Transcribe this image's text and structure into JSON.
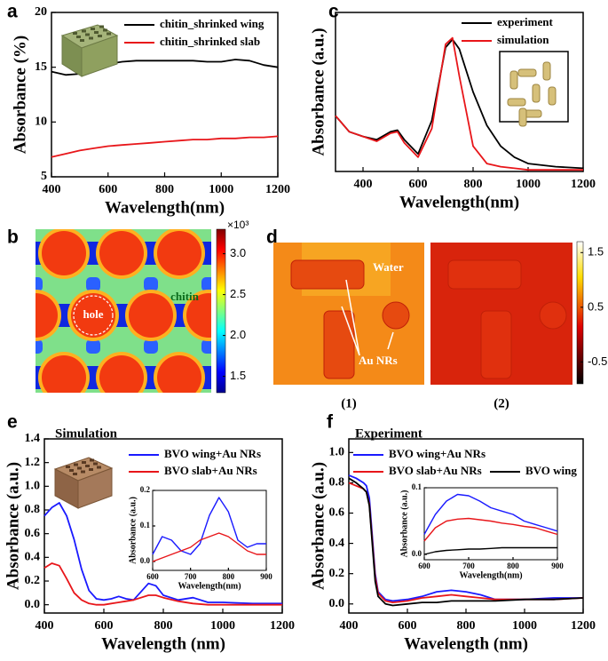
{
  "chart_data": [
    {
      "type": "line",
      "panel_label": "a",
      "xlabel": "Wavelength(nm)",
      "ylabel": "Absorbance (%)",
      "xlim": [
        400,
        1200
      ],
      "ylim": [
        5,
        20
      ],
      "xticks": [
        400,
        600,
        800,
        1000,
        1200
      ],
      "yticks": [
        5,
        10,
        15,
        20
      ],
      "x": [
        400,
        450,
        500,
        550,
        600,
        650,
        700,
        750,
        800,
        850,
        900,
        950,
        1000,
        1050,
        1100,
        1150,
        1200
      ],
      "series": [
        {
          "name": "chitin_shrinked wing",
          "color": "#000000",
          "values": [
            14.6,
            14.3,
            14.4,
            15.8,
            15.3,
            15.5,
            15.6,
            15.6,
            15.6,
            15.6,
            15.6,
            15.5,
            15.5,
            15.7,
            15.6,
            15.2,
            15.0
          ]
        },
        {
          "name": "chitin_shrinked slab",
          "color": "#e8161a",
          "values": [
            6.8,
            7.1,
            7.4,
            7.6,
            7.8,
            7.9,
            8.0,
            8.1,
            8.2,
            8.3,
            8.4,
            8.4,
            8.5,
            8.5,
            8.6,
            8.6,
            8.7
          ]
        }
      ]
    },
    {
      "type": "heatmap",
      "panel_label": "b",
      "colormap": "jet",
      "clim": [
        1.3,
        3.3
      ],
      "cticks": [
        1.5,
        {
          "value": 2,
          "label": "2.0"
        },
        2.5,
        {
          "value": 3,
          "label": "3.0"
        }
      ],
      "colorbar_label": "×10³",
      "annotations": [
        "hole",
        "chitin"
      ]
    },
    {
      "type": "line",
      "panel_label": "c",
      "xlabel": "Wavelength(nm)",
      "ylabel": "Absorbance (a.u.)",
      "xlim": [
        300,
        1200
      ],
      "ylim": [
        0,
        1
      ],
      "xticks": [
        400,
        600,
        800,
        1000,
        1200
      ],
      "x": [
        300,
        350,
        400,
        450,
        500,
        525,
        550,
        600,
        650,
        700,
        725,
        750,
        800,
        850,
        900,
        950,
        1000,
        1100,
        1200
      ],
      "series": [
        {
          "name": "experiment",
          "color": "#000000",
          "values": [
            0.35,
            0.25,
            0.22,
            0.2,
            0.25,
            0.26,
            0.2,
            0.11,
            0.32,
            0.78,
            0.83,
            0.77,
            0.5,
            0.29,
            0.16,
            0.09,
            0.05,
            0.03,
            0.02
          ]
        },
        {
          "name": "simulation",
          "color": "#e8161a",
          "values": [
            0.35,
            0.25,
            0.22,
            0.19,
            0.24,
            0.25,
            0.18,
            0.09,
            0.27,
            0.8,
            0.84,
            0.6,
            0.16,
            0.05,
            0.03,
            0.02,
            0.01,
            0.01,
            0.01
          ]
        }
      ]
    },
    {
      "type": "heatmap",
      "panel_label": "d",
      "colormap": "hot",
      "clim": [
        -0.9,
        1.7
      ],
      "cticks": [
        1.5,
        0.5,
        -0.5
      ],
      "annotations": [
        "Water",
        "Au NRs"
      ],
      "subplot_labels": [
        "(1)",
        "(2)"
      ]
    },
    {
      "type": "line",
      "panel_label": "e",
      "title": "Simulation",
      "xlabel": "Wavelength (nm)",
      "ylabel": "Absorbance (a.u.)",
      "xlim": [
        400,
        1200
      ],
      "ylim": [
        -0.07,
        1.4
      ],
      "xticks": [
        400,
        600,
        800,
        1000,
        1200
      ],
      "yticks": [
        {
          "value": 0,
          "label": "0.0"
        },
        0.2,
        0.4,
        0.6,
        0.8,
        {
          "value": 1,
          "label": "1.0"
        },
        1.2,
        1.4
      ],
      "x": [
        400,
        425,
        450,
        475,
        500,
        525,
        550,
        575,
        600,
        625,
        650,
        675,
        700,
        750,
        775,
        800,
        850,
        900,
        950,
        1000,
        1100,
        1200
      ],
      "series": [
        {
          "name": "BVO wing+Au NRs",
          "color": "#1a1aff",
          "values": [
            0.75,
            0.82,
            0.86,
            0.75,
            0.55,
            0.3,
            0.12,
            0.05,
            0.04,
            0.05,
            0.07,
            0.05,
            0.04,
            0.18,
            0.16,
            0.08,
            0.04,
            0.06,
            0.02,
            0.02,
            0.01,
            0.01
          ]
        },
        {
          "name": "BVO slab+Au NRs",
          "color": "#e8161a",
          "values": [
            0.31,
            0.35,
            0.33,
            0.22,
            0.1,
            0.04,
            0.01,
            0.0,
            0.0,
            0.01,
            0.02,
            0.03,
            0.04,
            0.08,
            0.08,
            0.06,
            0.03,
            0.01,
            0.0,
            0.0,
            0.0,
            0.0
          ]
        }
      ],
      "inset": {
        "xlabel": "Wavelength(nm)",
        "ylabel": "Absorbance (a.u.)",
        "xlim": [
          600,
          900
        ],
        "ylim": [
          -0.025,
          0.2
        ],
        "xticks": [
          600,
          700,
          800,
          900
        ],
        "yticks": [
          {
            "value": 0,
            "label": "0.0"
          },
          0.1,
          0.2
        ],
        "x": [
          600,
          625,
          650,
          675,
          700,
          725,
          750,
          775,
          800,
          825,
          850,
          875,
          900
        ],
        "series": [
          {
            "color": "#1a1aff",
            "values": [
              0.02,
              0.07,
              0.06,
              0.03,
              0.02,
              0.05,
              0.13,
              0.18,
              0.14,
              0.06,
              0.04,
              0.05,
              0.05
            ]
          },
          {
            "color": "#e8161a",
            "values": [
              0.0,
              0.01,
              0.02,
              0.03,
              0.04,
              0.06,
              0.07,
              0.08,
              0.07,
              0.05,
              0.03,
              0.02,
              0.02
            ]
          }
        ]
      }
    },
    {
      "type": "line",
      "panel_label": "f",
      "title": "Experiment",
      "xlabel": "Wavelength (nm)",
      "ylabel": "Absorbance (a.u.)",
      "xlim": [
        400,
        1200
      ],
      "ylim": [
        -0.06,
        1.09
      ],
      "xticks": [
        400,
        600,
        800,
        1000,
        1200
      ],
      "yticks": [
        {
          "value": 0,
          "label": "0.0"
        },
        0.2,
        0.4,
        0.6,
        0.8,
        {
          "value": 1,
          "label": "1.0"
        }
      ],
      "x": [
        400,
        425,
        450,
        460,
        470,
        480,
        490,
        500,
        525,
        550,
        600,
        650,
        700,
        750,
        800,
        850,
        900,
        1000,
        1100,
        1200
      ],
      "series": [
        {
          "name": "BVO wing+Au NRs",
          "color": "#1a1aff",
          "values": [
            0.85,
            0.83,
            0.8,
            0.78,
            0.7,
            0.45,
            0.2,
            0.08,
            0.03,
            0.02,
            0.03,
            0.05,
            0.08,
            0.09,
            0.08,
            0.06,
            0.03,
            0.03,
            0.04,
            0.04
          ]
        },
        {
          "name": "BVO slab+Au NRs",
          "color": "#e8161a",
          "values": [
            0.8,
            0.78,
            0.76,
            0.74,
            0.66,
            0.42,
            0.18,
            0.07,
            0.02,
            0.01,
            0.02,
            0.04,
            0.05,
            0.06,
            0.05,
            0.04,
            0.03,
            0.03,
            0.03,
            0.04
          ]
        },
        {
          "name": "BVO wing",
          "color": "#000000",
          "values": [
            0.83,
            0.8,
            0.76,
            0.74,
            0.65,
            0.4,
            0.15,
            0.05,
            0.0,
            -0.01,
            0.0,
            0.01,
            0.01,
            0.02,
            0.02,
            0.02,
            0.02,
            0.03,
            0.03,
            0.04
          ]
        }
      ],
      "inset": {
        "xlabel": "Wavelength(nm)",
        "ylabel": "Absorbance (a.u.)",
        "xlim": [
          600,
          900
        ],
        "ylim": [
          -0.008,
          0.1
        ],
        "xticks": [
          600,
          700,
          800,
          900
        ],
        "yticks": [
          {
            "value": 0,
            "label": "0.0"
          },
          0.1
        ],
        "x": [
          600,
          625,
          650,
          675,
          700,
          725,
          750,
          775,
          800,
          825,
          850,
          875,
          900
        ],
        "series": [
          {
            "color": "#1a1aff",
            "values": [
              0.03,
              0.06,
              0.08,
              0.09,
              0.088,
              0.08,
              0.07,
              0.065,
              0.06,
              0.05,
              0.045,
              0.04,
              0.035
            ]
          },
          {
            "color": "#e8161a",
            "values": [
              0.02,
              0.04,
              0.05,
              0.053,
              0.054,
              0.052,
              0.05,
              0.047,
              0.045,
              0.042,
              0.04,
              0.035,
              0.03
            ]
          },
          {
            "color": "#000000",
            "values": [
              0.0,
              0.004,
              0.006,
              0.007,
              0.008,
              0.008,
              0.009,
              0.01,
              0.01,
              0.01,
              0.01,
              0.01,
              0.01
            ]
          }
        ]
      }
    }
  ]
}
